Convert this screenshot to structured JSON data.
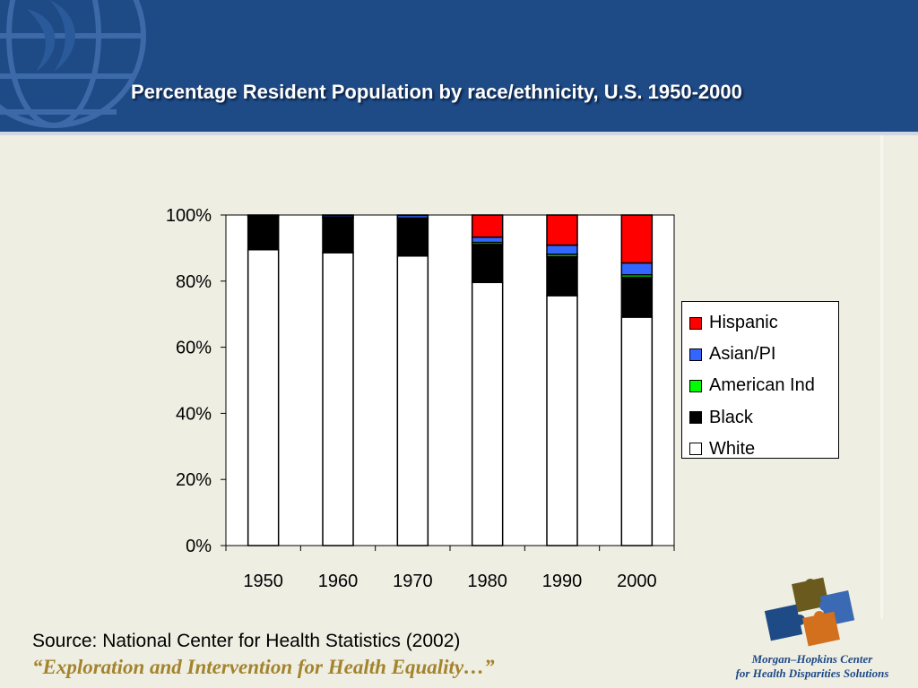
{
  "slide": {
    "title": "Percentage Resident Population by race/ethnicity, U.S. 1950-2000",
    "source": "Source: National Center for Health Statistics (2002)",
    "tagline": "“Exploration and Intervention for Health Equality…”",
    "logo_line1": "Morgan–Hopkins Center",
    "logo_line2": "for Health Disparities Solutions"
  },
  "colors": {
    "header": "#1e4a86",
    "background": "#efeee3",
    "tagline": "#a3842c"
  },
  "chart_data": {
    "type": "bar",
    "stacked": true,
    "categories": [
      "1950",
      "1960",
      "1970",
      "1980",
      "1990",
      "2000"
    ],
    "series": [
      {
        "name": "White",
        "color": "#ffffff",
        "values": [
          89.5,
          88.6,
          87.6,
          79.6,
          75.6,
          69.1
        ]
      },
      {
        "name": "Black",
        "color": "#000000",
        "values": [
          10.0,
          10.5,
          11.1,
          11.5,
          11.8,
          12.1
        ]
      },
      {
        "name": "American Ind",
        "color": "#00ff00",
        "values": [
          0.2,
          0.3,
          0.4,
          0.6,
          0.7,
          0.7
        ]
      },
      {
        "name": "Asian/PI",
        "color": "#3366ff",
        "values": [
          0.2,
          0.5,
          0.8,
          1.6,
          2.8,
          3.6
        ]
      },
      {
        "name": "Hispanic",
        "color": "#ff0000",
        "values": [
          0.1,
          0.1,
          0.1,
          6.7,
          9.1,
          14.5
        ]
      }
    ],
    "yticks": [
      "0%",
      "20%",
      "40%",
      "60%",
      "80%",
      "100%"
    ],
    "ylim": [
      0,
      100
    ],
    "legend": [
      "Hispanic",
      "Asian/PI",
      "American Ind",
      "Black",
      "White"
    ],
    "legend_position": "right",
    "grid": false
  }
}
